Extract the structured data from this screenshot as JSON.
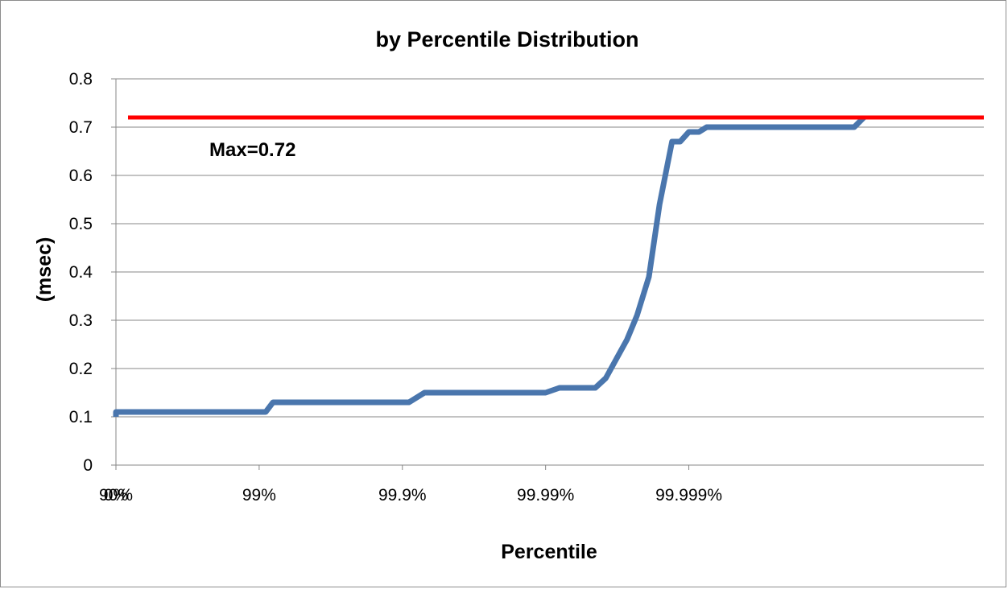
{
  "chart_data": {
    "type": "line",
    "title": "by Percentile Distribution",
    "xlabel": "Percentile",
    "ylabel": "(msec)",
    "x_scale": "percentile (log of 1/(1-p))",
    "x_ticks": [
      "0%",
      "90%",
      "99%",
      "99.9%",
      "99.99%",
      "99.999%"
    ],
    "ylim": [
      0,
      0.8
    ],
    "y_ticks": [
      "0",
      "0.1",
      "0.2",
      "0.3",
      "0.4",
      "0.5",
      "0.6",
      "0.7",
      "0.8"
    ],
    "grid": "horizontal",
    "legend": "none",
    "series": [
      {
        "color": "#4a76ad",
        "points": [
          {
            "x": "50%",
            "y": 0.1
          },
          {
            "x": "85%",
            "y": 0.1
          },
          {
            "x": "88%",
            "y": 0.11
          },
          {
            "x": "99.1%",
            "y": 0.11
          },
          {
            "x": "99.2%",
            "y": 0.13
          },
          {
            "x": "99.91%",
            "y": 0.13
          },
          {
            "x": "99.93%",
            "y": 0.15
          },
          {
            "x": "99.99%",
            "y": 0.15
          },
          {
            "x": "99.992%",
            "y": 0.16
          },
          {
            "x": "99.9955%",
            "y": 0.16
          },
          {
            "x": "99.9962%",
            "y": 0.18
          },
          {
            "x": "99.9973%",
            "y": 0.26
          },
          {
            "x": "99.9977%",
            "y": 0.31
          },
          {
            "x": "99.9981%",
            "y": 0.39
          },
          {
            "x": "99.9984%",
            "y": 0.54
          },
          {
            "x": "99.99869%",
            "y": 0.67
          },
          {
            "x": "99.99885%",
            "y": 0.67
          },
          {
            "x": "99.9990%",
            "y": 0.69
          },
          {
            "x": "99.99915%",
            "y": 0.69
          },
          {
            "x": "99.99925%",
            "y": 0.7
          },
          {
            "x": "99.99993%",
            "y": 0.7
          },
          {
            "x": "99.99994%",
            "y": 0.72
          }
        ],
        "x_numeric": [
          0.5,
          0.85,
          0.88,
          0.991,
          0.992,
          0.9991,
          0.9993,
          0.9999,
          0.99992,
          0.999955,
          0.999962,
          0.999973,
          0.999977,
          0.999981,
          0.999984,
          0.9999869,
          0.9999885,
          0.99999,
          0.9999915,
          0.9999925,
          0.9999993,
          0.9999994
        ]
      }
    ],
    "reference_line": {
      "y": 0.72,
      "color": "#ff0000",
      "label": "Max=0.72"
    }
  },
  "colors": {
    "series": "#4a76ad",
    "max_line": "#ff0000",
    "grid": "#878787",
    "axis": "#878787"
  }
}
